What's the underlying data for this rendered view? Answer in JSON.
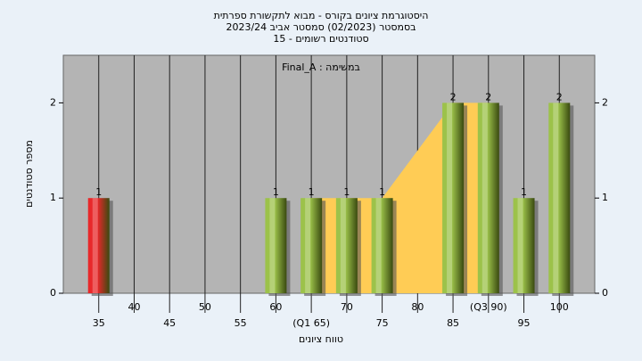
{
  "chart_data": {
    "type": "bar",
    "title": "היסטוגרמת ציונים בקורס - מבוא לתקשורת ספרתית",
    "subtitle": "בסמסטר  (02/2023)  סמסטר אביב 2023/24",
    "subtitle2": "סטודנטים רשומים - 15",
    "annotation": "במשימה : Final_A",
    "x_label": "טווח ציונים",
    "y_label": "מספר סטודנטים",
    "x": [
      35,
      40,
      45,
      50,
      55,
      60,
      65,
      70,
      75,
      80,
      85,
      90,
      95,
      100
    ],
    "values": [
      1,
      0,
      0,
      0,
      0,
      1,
      1,
      1,
      1,
      0,
      2,
      2,
      1,
      2
    ],
    "colors": [
      "#e8282a",
      "#9cc24a",
      "#9cc24a",
      "#9cc24a",
      "#9cc24a",
      "#9cc24a",
      "#9cc24a",
      "#9cc24a",
      "#9cc24a",
      "#9cc24a",
      "#9cc24a",
      "#9cc24a",
      "#9cc24a",
      "#9cc24a"
    ],
    "quartiles": [
      65,
      90
    ],
    "quartile_color": "#ffcc55",
    "xlim": [
      30,
      105
    ],
    "xticks": [
      35,
      40,
      45,
      50,
      55,
      60,
      {
        "value": 65,
        "label": "(Q1 65)"
      },
      70,
      75,
      80,
      85,
      {
        "value": 90,
        "label": "(Q3 90)"
      },
      95,
      100
    ],
    "ylim": [
      0,
      2.5
    ],
    "yticks": [
      0,
      1,
      2
    ],
    "y2lim": [
      0,
      2.5
    ],
    "y2ticks": [
      0,
      1,
      2
    ],
    "grid": true
  }
}
